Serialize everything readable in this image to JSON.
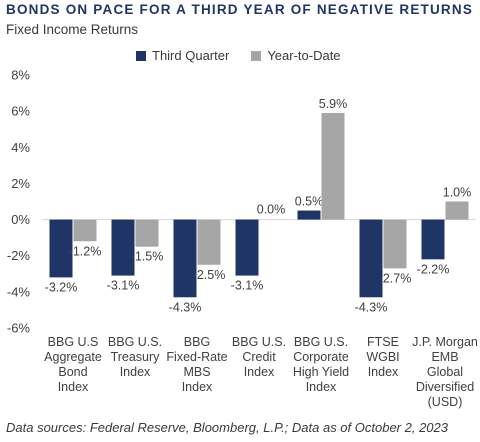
{
  "title": "BONDS ON PACE FOR A THIRD YEAR OF NEGATIVE RETURNS",
  "subtitle": "Fixed Income Returns",
  "footer": "Data sources: Federal Reserve, Bloomberg, L.P.; Data as of October 2, 2023",
  "colors": {
    "series1": "#1f3565",
    "series2": "#a6a6a6"
  },
  "chart_data": {
    "type": "bar",
    "categories": [
      [
        "BBG U.S",
        "Aggregate",
        "Bond",
        "Index"
      ],
      [
        "BBG U.S.",
        "Treasury",
        "Index"
      ],
      [
        "BBG",
        "Fixed-Rate",
        "MBS",
        "Index"
      ],
      [
        "BBG U.S.",
        "Credit",
        "Index"
      ],
      [
        "BBG U.S.",
        "Corporate",
        "High Yield",
        "Index"
      ],
      [
        "FTSE",
        "WGBI",
        "Index"
      ],
      [
        "J.P. Morgan",
        "EMB",
        "Global",
        "Diversified",
        "(USD)"
      ]
    ],
    "series": [
      {
        "name": "Third Quarter",
        "values": [
          -3.2,
          -3.1,
          -4.3,
          -3.1,
          0.5,
          -4.3,
          -2.2
        ],
        "labels": [
          "-3.2%",
          "-3.1%",
          "-4.3%",
          "-3.1%",
          "0.5%",
          "-4.3%",
          "-2.2%"
        ]
      },
      {
        "name": "Year-to-Date",
        "values": [
          -1.2,
          -1.5,
          -2.5,
          0.0,
          5.9,
          -2.7,
          1.0
        ],
        "labels": [
          "-1.2%",
          "-1.5%",
          "-2.5%",
          "0.0%",
          "5.9%",
          "-2.7%",
          "1.0%"
        ]
      }
    ],
    "ylim": [
      -6,
      8
    ],
    "yticks": [
      8,
      6,
      4,
      2,
      0,
      -2,
      -4,
      -6
    ],
    "ytick_labels": [
      "8%",
      "6%",
      "4%",
      "2%",
      "0%",
      "-2%",
      "-4%",
      "-6%"
    ],
    "legend_position": "top",
    "grid": false
  }
}
